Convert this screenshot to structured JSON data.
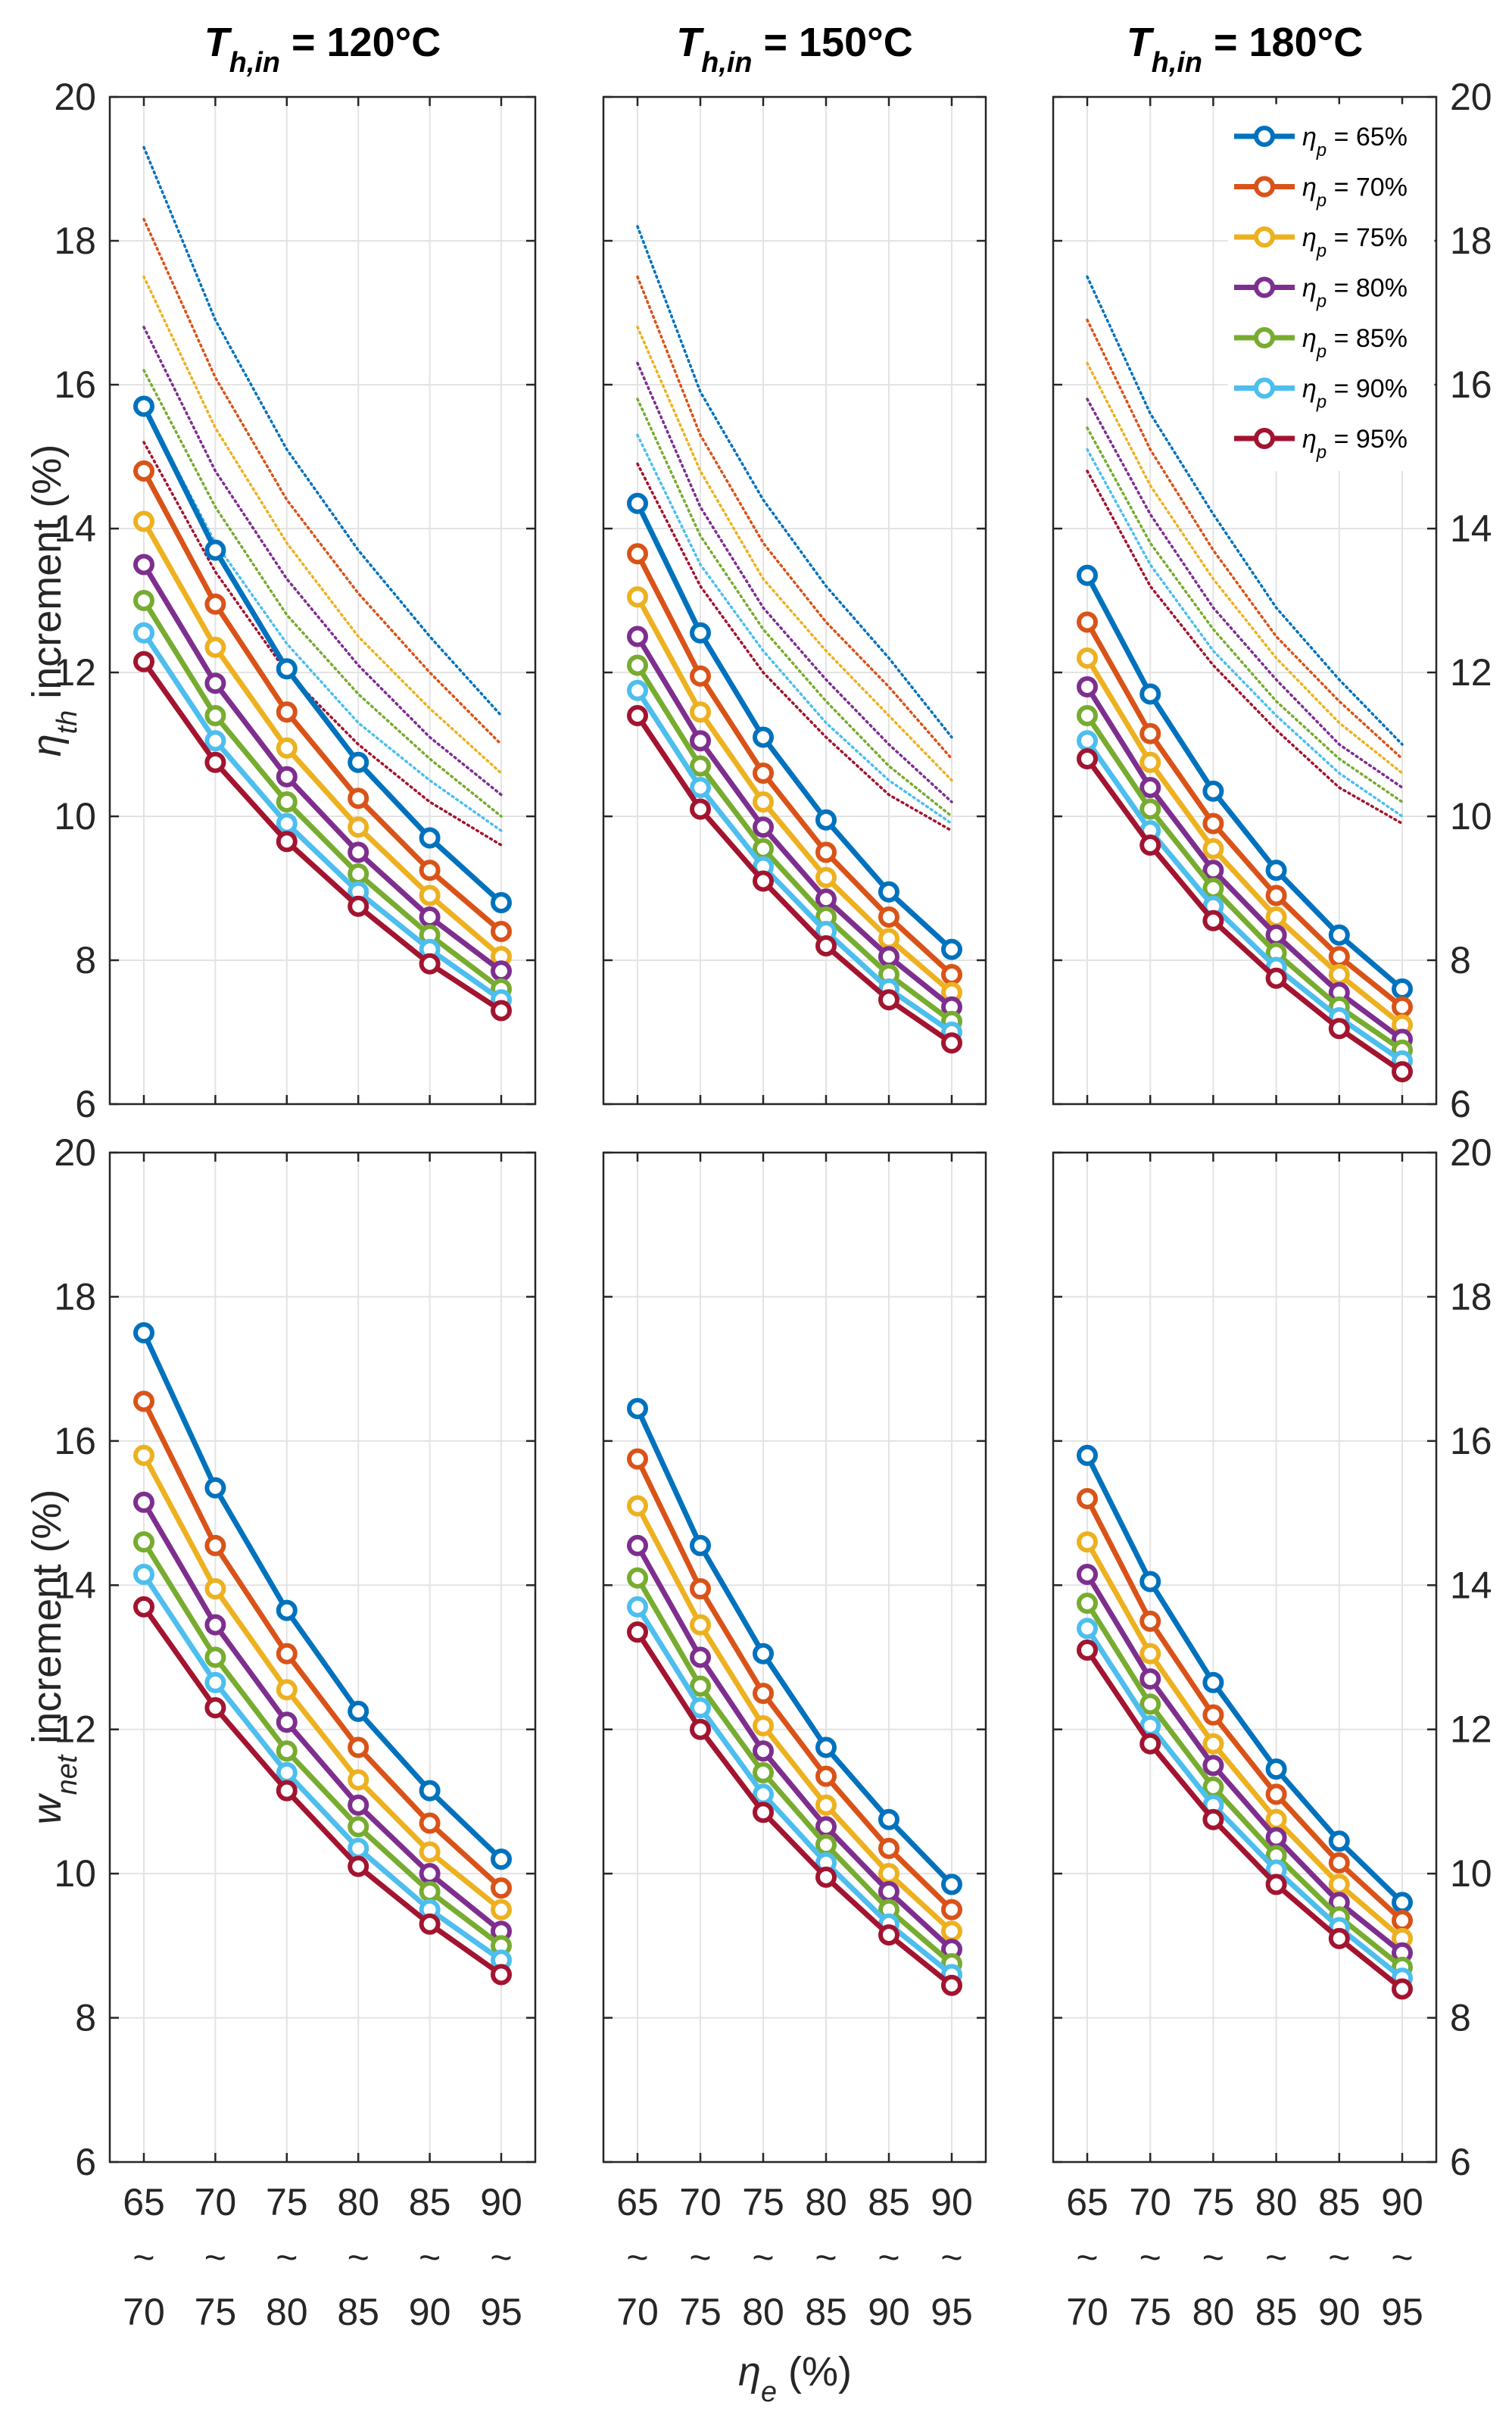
{
  "chart_data": {
    "type": "line",
    "x_tick_top": [
      "65",
      "70",
      "75",
      "80",
      "85",
      "90"
    ],
    "x_tick_mid": [
      "~",
      "~",
      "~",
      "~",
      "~",
      "~"
    ],
    "x_tick_bot": [
      "70",
      "75",
      "80",
      "85",
      "90",
      "95"
    ],
    "x_label": {
      "sym": "η",
      "sub": "e",
      "rest": " (%)"
    },
    "y_label_top": {
      "sym": "η",
      "sub": "th",
      "rest": " increment (%)"
    },
    "y_label_bottom": {
      "sym": "w",
      "sub": "net",
      "rest": " increment (%)"
    },
    "ylim": [
      6,
      20
    ],
    "yticks": [
      6,
      8,
      10,
      12,
      14,
      16,
      18,
      20
    ],
    "grid": true,
    "legend": {
      "placement": "top-right",
      "prefix": "η",
      "sub": "p",
      "labels": [
        " = 65%",
        " = 70%",
        " = 75%",
        " = 80%",
        " = 85%",
        " = 90%",
        " = 95%"
      ]
    },
    "colors": [
      "#0072BD",
      "#D95319",
      "#EDB120",
      "#7E2F8E",
      "#77AC30",
      "#4DBEEE",
      "#A2142F"
    ],
    "panels": [
      {
        "title": {
          "sym": "T",
          "sub": "h,in",
          "rest": " = 120°C"
        },
        "top": {
          "solid": [
            [
              15.7,
              13.7,
              12.05,
              10.75,
              9.7,
              8.8
            ],
            [
              14.8,
              12.95,
              11.45,
              10.25,
              9.25,
              8.4
            ],
            [
              14.1,
              12.35,
              10.95,
              9.85,
              8.9,
              8.05
            ],
            [
              13.5,
              11.85,
              10.55,
              9.5,
              8.6,
              7.85
            ],
            [
              13.0,
              11.4,
              10.2,
              9.2,
              8.35,
              7.6
            ],
            [
              12.55,
              11.05,
              9.9,
              8.95,
              8.15,
              7.45
            ],
            [
              12.15,
              10.75,
              9.65,
              8.75,
              7.95,
              7.3
            ]
          ],
          "dotted": [
            [
              19.3,
              16.9,
              15.1,
              13.7,
              12.5,
              11.4
            ],
            [
              18.3,
              16.1,
              14.4,
              13.1,
              12.0,
              11.0
            ],
            [
              17.5,
              15.4,
              13.8,
              12.5,
              11.5,
              10.6
            ],
            [
              16.8,
              14.8,
              13.3,
              12.1,
              11.1,
              10.3
            ],
            [
              16.2,
              14.3,
              12.8,
              11.7,
              10.8,
              10.0
            ],
            [
              15.7,
              13.8,
              12.4,
              11.3,
              10.5,
              9.8
            ],
            [
              15.2,
              13.4,
              12.0,
              11.0,
              10.2,
              9.6
            ]
          ]
        },
        "bottom": {
          "solid": [
            [
              17.5,
              15.35,
              13.65,
              12.25,
              11.15,
              10.2
            ],
            [
              16.55,
              14.55,
              13.05,
              11.75,
              10.7,
              9.8
            ],
            [
              15.8,
              13.95,
              12.55,
              11.3,
              10.3,
              9.5
            ],
            [
              15.15,
              13.45,
              12.1,
              10.95,
              10.0,
              9.2
            ],
            [
              14.6,
              13.0,
              11.7,
              10.65,
              9.75,
              9.0
            ],
            [
              14.15,
              12.65,
              11.4,
              10.35,
              9.5,
              8.8
            ],
            [
              13.7,
              12.3,
              11.15,
              10.1,
              9.3,
              8.6
            ]
          ]
        }
      },
      {
        "title": {
          "sym": "T",
          "sub": "h,in",
          "rest": " = 150°C"
        },
        "top": {
          "solid": [
            [
              14.35,
              12.55,
              11.1,
              9.95,
              8.95,
              8.15
            ],
            [
              13.65,
              11.95,
              10.6,
              9.5,
              8.6,
              7.8
            ],
            [
              13.05,
              11.45,
              10.2,
              9.15,
              8.3,
              7.55
            ],
            [
              12.5,
              11.05,
              9.85,
              8.85,
              8.05,
              7.35
            ],
            [
              12.1,
              10.7,
              9.55,
              8.6,
              7.8,
              7.15
            ],
            [
              11.75,
              10.4,
              9.3,
              8.4,
              7.6,
              7.0
            ],
            [
              11.4,
              10.1,
              9.1,
              8.2,
              7.45,
              6.85
            ]
          ],
          "dotted": [
            [
              18.2,
              15.9,
              14.4,
              13.2,
              12.2,
              11.1
            ],
            [
              17.5,
              15.3,
              13.8,
              12.7,
              11.8,
              10.8
            ],
            [
              16.8,
              14.8,
              13.3,
              12.3,
              11.4,
              10.5
            ],
            [
              16.3,
              14.3,
              12.9,
              11.9,
              11.0,
              10.2
            ],
            [
              15.8,
              13.9,
              12.6,
              11.6,
              10.7,
              10.0
            ],
            [
              15.3,
              13.5,
              12.3,
              11.3,
              10.5,
              9.9
            ],
            [
              14.9,
              13.2,
              12.0,
              11.1,
              10.3,
              9.8
            ]
          ]
        },
        "bottom": {
          "solid": [
            [
              16.45,
              14.55,
              13.05,
              11.75,
              10.75,
              9.85
            ],
            [
              15.75,
              13.95,
              12.5,
              11.35,
              10.35,
              9.5
            ],
            [
              15.1,
              13.45,
              12.05,
              10.95,
              10.0,
              9.2
            ],
            [
              14.55,
              13.0,
              11.7,
              10.65,
              9.75,
              8.95
            ],
            [
              14.1,
              12.6,
              11.4,
              10.4,
              9.5,
              8.75
            ],
            [
              13.7,
              12.3,
              11.1,
              10.15,
              9.3,
              8.6
            ],
            [
              13.35,
              12.0,
              10.85,
              9.95,
              9.15,
              8.45
            ]
          ]
        }
      },
      {
        "title": {
          "sym": "T",
          "sub": "h,in",
          "rest": " = 180°C"
        },
        "top": {
          "solid": [
            [
              13.35,
              11.7,
              10.35,
              9.25,
              8.35,
              7.6
            ],
            [
              12.7,
              11.15,
              9.9,
              8.9,
              8.05,
              7.35
            ],
            [
              12.2,
              10.75,
              9.55,
              8.6,
              7.8,
              7.1
            ],
            [
              11.8,
              10.4,
              9.25,
              8.35,
              7.55,
              6.9
            ],
            [
              11.4,
              10.1,
              9.0,
              8.1,
              7.35,
              6.75
            ],
            [
              11.05,
              9.8,
              8.75,
              7.9,
              7.2,
              6.6
            ],
            [
              10.8,
              9.6,
              8.55,
              7.75,
              7.05,
              6.45
            ]
          ],
          "dotted": [
            [
              17.5,
              15.6,
              14.2,
              12.9,
              11.9,
              11.0
            ],
            [
              16.9,
              15.1,
              13.7,
              12.5,
              11.6,
              10.8
            ],
            [
              16.3,
              14.6,
              13.3,
              12.2,
              11.3,
              10.6
            ],
            [
              15.8,
              14.2,
              12.9,
              11.9,
              11.0,
              10.4
            ],
            [
              15.4,
              13.8,
              12.6,
              11.6,
              10.8,
              10.2
            ],
            [
              15.1,
              13.5,
              12.3,
              11.4,
              10.6,
              10.0
            ],
            [
              14.8,
              13.2,
              12.1,
              11.2,
              10.4,
              9.9
            ]
          ]
        },
        "bottom": {
          "solid": [
            [
              15.8,
              14.05,
              12.65,
              11.45,
              10.45,
              9.6
            ],
            [
              15.2,
              13.5,
              12.2,
              11.1,
              10.15,
              9.35
            ],
            [
              14.6,
              13.05,
              11.8,
              10.75,
              9.85,
              9.1
            ],
            [
              14.15,
              12.7,
              11.5,
              10.5,
              9.6,
              8.9
            ],
            [
              13.75,
              12.35,
              11.2,
              10.25,
              9.4,
              8.7
            ],
            [
              13.4,
              12.05,
              10.95,
              10.05,
              9.25,
              8.55
            ],
            [
              13.1,
              11.8,
              10.75,
              9.85,
              9.1,
              8.4
            ]
          ]
        }
      }
    ]
  }
}
